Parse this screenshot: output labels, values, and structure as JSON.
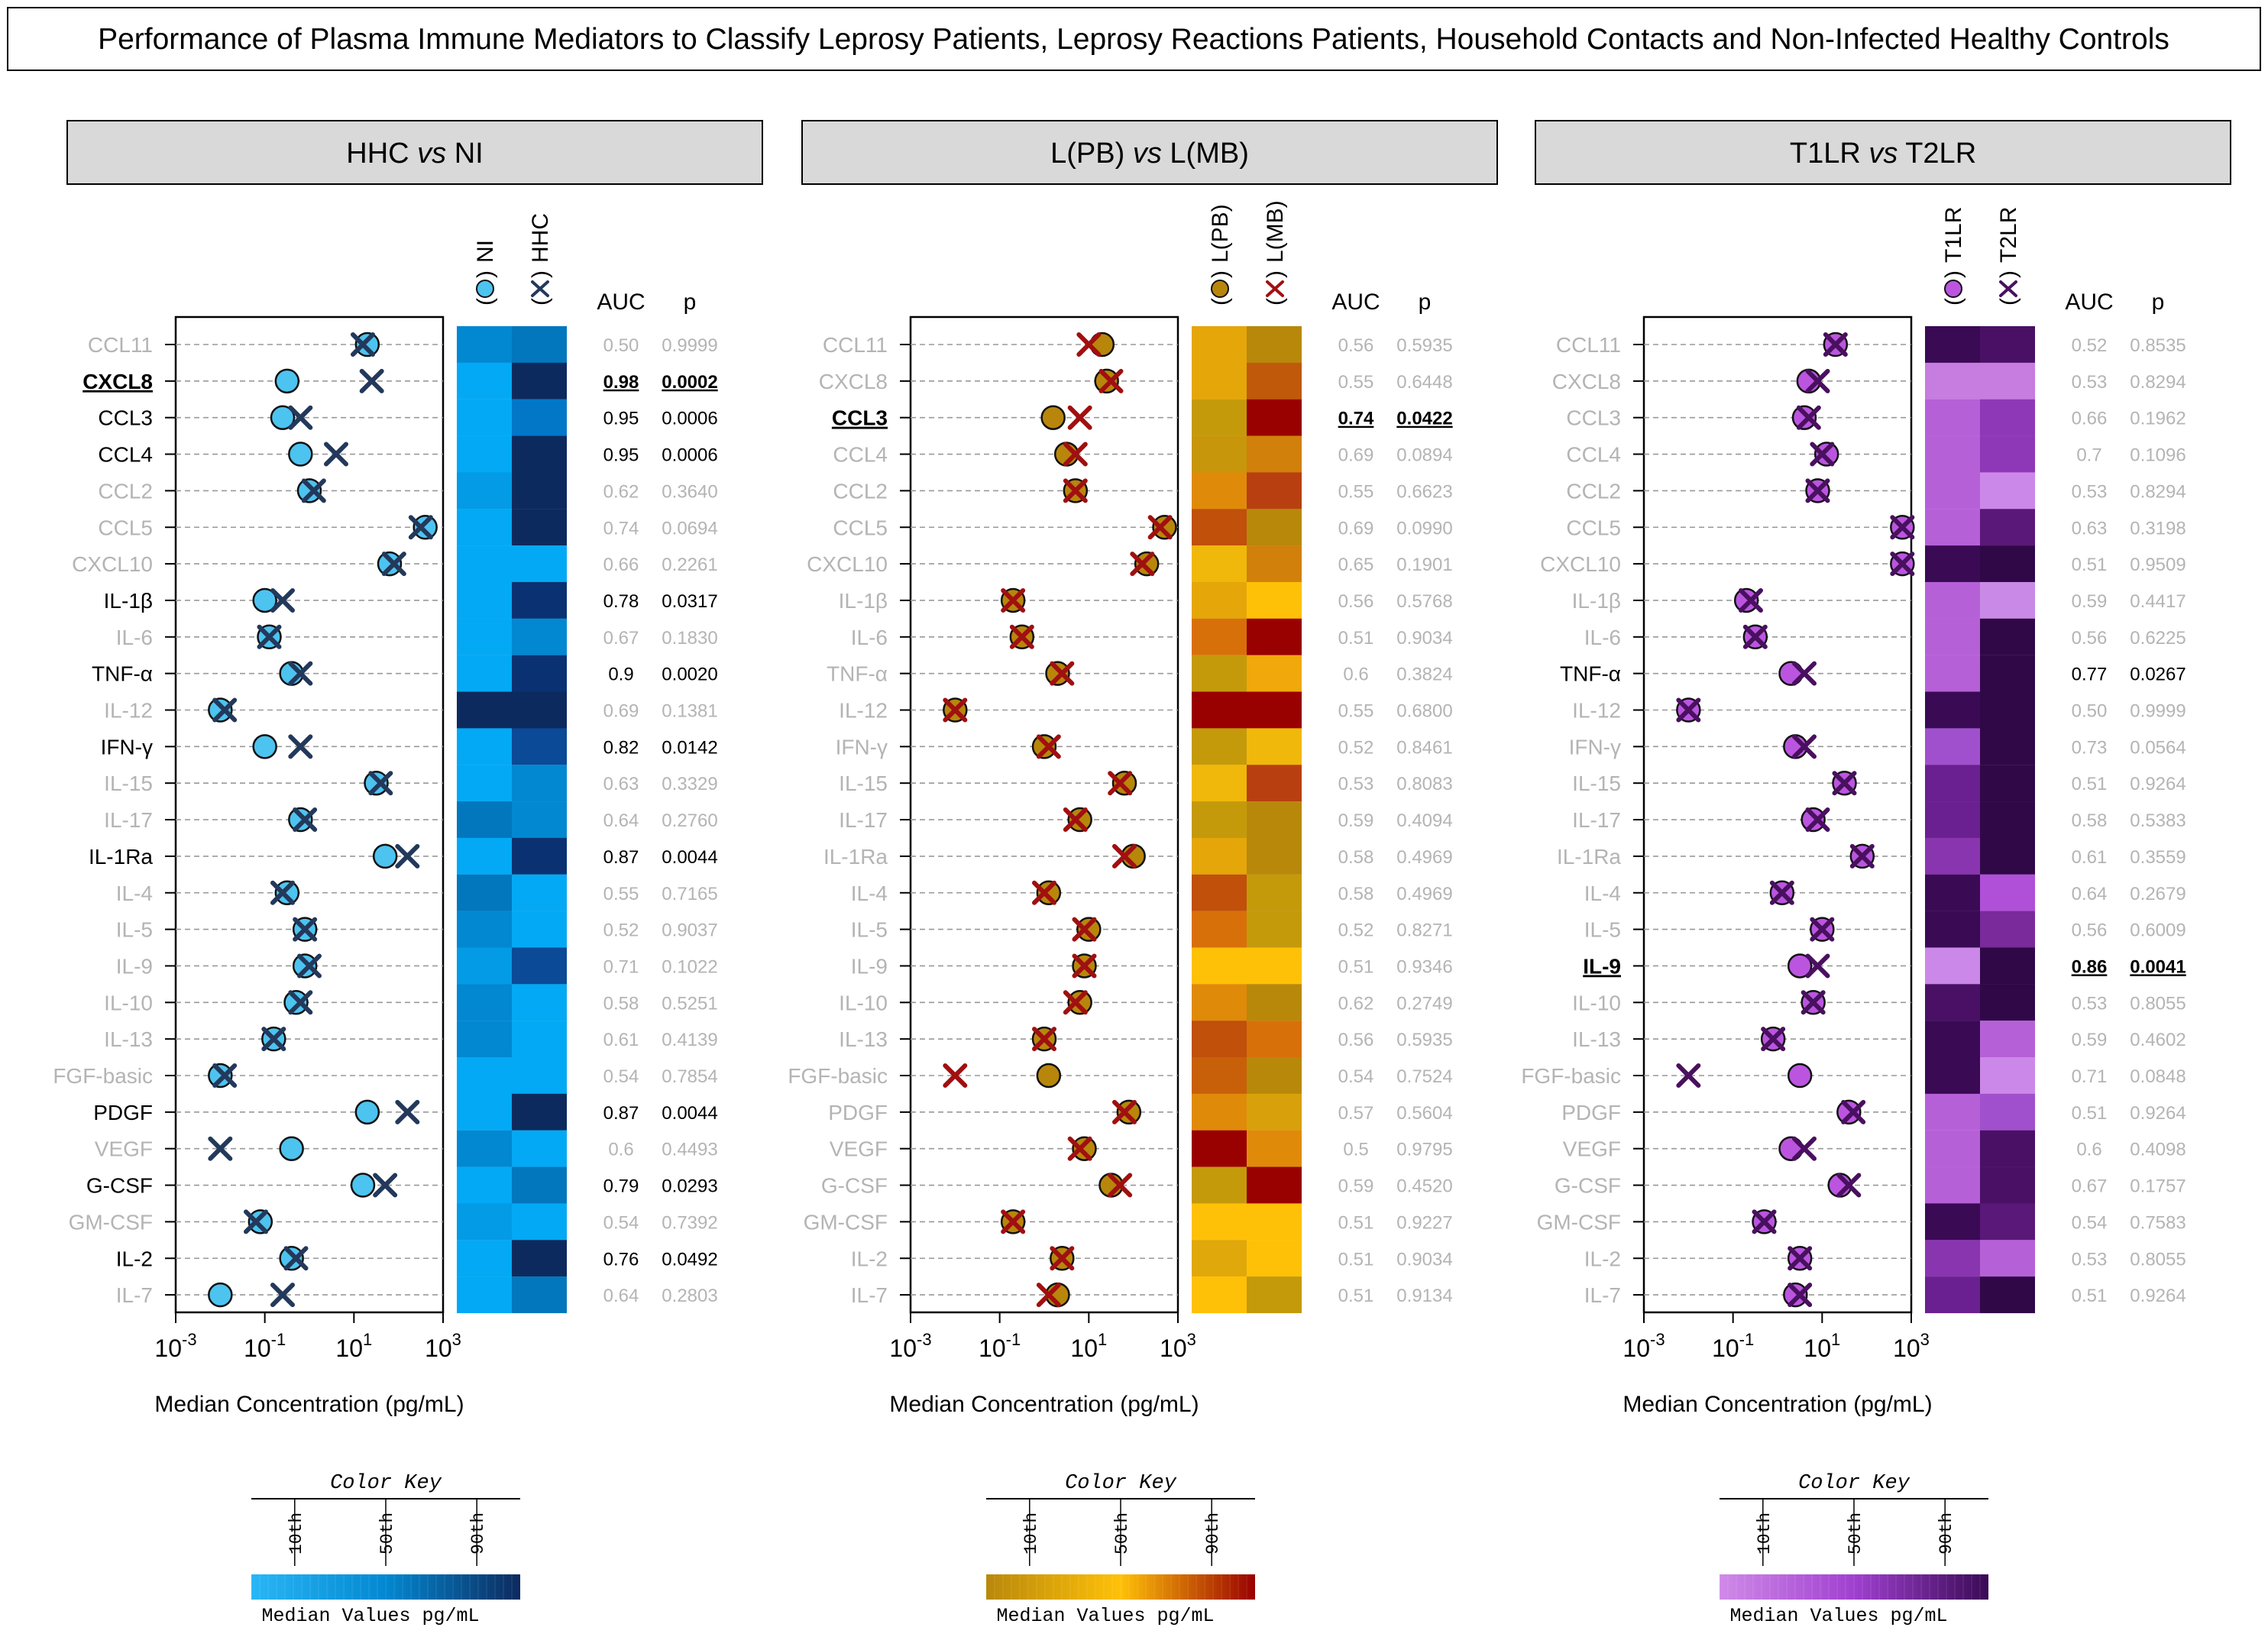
{
  "title": "Performance of Plasma Immune Mediators to Classify Leprosy Patients, Leprosy Reactions Patients, Household Contacts and Non-Infected Healthy Controls",
  "cytokines": [
    "CCL11",
    "CXCL8",
    "CCL3",
    "CCL4",
    "CCL2",
    "CCL5",
    "CXCL10",
    "IL-1β",
    "IL-6",
    "TNF-α",
    "IL-12",
    "IFN-γ",
    "IL-15",
    "IL-17",
    "IL-1Ra",
    "IL-4",
    "IL-5",
    "IL-9",
    "IL-10",
    "IL-13",
    "FGF-basic",
    "PDGF",
    "VEGF",
    "G-CSF",
    "GM-CSF",
    "IL-2",
    "IL-7"
  ],
  "axis": {
    "xlabel": "Median Concentration (pg/mL)",
    "tick_base": "10",
    "tick_exponents": [
      "-3",
      "-1",
      "1",
      "3"
    ],
    "xlim_log10": [
      -3,
      3
    ]
  },
  "table_headers": {
    "auc": "AUC",
    "p": "p"
  },
  "color_key": {
    "title": "Color Key",
    "percentiles": [
      "10th",
      "50th",
      "90th"
    ],
    "label": "Median Values pg/mL"
  },
  "chart_data": [
    {
      "type": "scatter",
      "comparison": {
        "a": "HHC",
        "vs": "vs",
        "b": "NI"
      },
      "series": [
        {
          "name": "NI",
          "marker": "circle",
          "color": "#4dc3f0",
          "log10_values": [
            1.3,
            -0.5,
            -0.6,
            -0.2,
            0.0,
            2.6,
            1.8,
            -1.0,
            -0.9,
            -0.4,
            -2.0,
            -1.0,
            1.5,
            -0.2,
            1.7,
            -0.5,
            -0.1,
            -0.1,
            -0.3,
            -0.8,
            -2.0,
            1.3,
            -0.4,
            1.2,
            -1.1,
            -0.4,
            -2.0
          ]
        },
        {
          "name": "HHC",
          "marker": "cross",
          "color": "#23395b",
          "log10_values": [
            1.2,
            1.4,
            -0.2,
            0.6,
            0.1,
            2.5,
            1.9,
            -0.6,
            -0.9,
            -0.2,
            -1.9,
            -0.2,
            1.6,
            -0.1,
            2.2,
            -0.6,
            -0.1,
            0.0,
            -0.2,
            -0.8,
            -1.9,
            2.2,
            -2.0,
            1.7,
            -1.2,
            -0.3,
            -0.6
          ]
        }
      ],
      "heatmap_colors": [
        [
          "#0288d1",
          "#0277bd"
        ],
        [
          "#03a9f4",
          "#0d2a5e"
        ],
        [
          "#03a9f4",
          "#0277c8"
        ],
        [
          "#03a9f4",
          "#0d2a5e"
        ],
        [
          "#039be5",
          "#0d2a5e"
        ],
        [
          "#03a9f4",
          "#0d2a5e"
        ],
        [
          "#03a9f4",
          "#03a9f4"
        ],
        [
          "#03a9f4",
          "#0a3272"
        ],
        [
          "#03a9f4",
          "#0288d1"
        ],
        [
          "#03a9f4",
          "#0a3272"
        ],
        [
          "#0d2a5e",
          "#0d2a5e"
        ],
        [
          "#03a9f4",
          "#0a4a96"
        ],
        [
          "#03a9f4",
          "#0288d1"
        ],
        [
          "#0277bd",
          "#0288d1"
        ],
        [
          "#03a9f4",
          "#0a3272"
        ],
        [
          "#0277bd",
          "#03a9f4"
        ],
        [
          "#0288d1",
          "#03a9f4"
        ],
        [
          "#039be5",
          "#0a4a96"
        ],
        [
          "#0288d1",
          "#03a9f4"
        ],
        [
          "#0288d1",
          "#03a9f4"
        ],
        [
          "#03a9f4",
          "#03a9f4"
        ],
        [
          "#03a9f4",
          "#0d2a5e"
        ],
        [
          "#0288d1",
          "#03a9f4"
        ],
        [
          "#03a9f4",
          "#0277bd"
        ],
        [
          "#039be5",
          "#03a9f4"
        ],
        [
          "#03a9f4",
          "#0d2a5e"
        ],
        [
          "#03a9f4",
          "#0277bd"
        ]
      ],
      "auc": [
        "0.50",
        "0.98",
        "0.95",
        "0.95",
        "0.62",
        "0.74",
        "0.66",
        "0.78",
        "0.67",
        "0.9",
        "0.69",
        "0.82",
        "0.63",
        "0.64",
        "0.87",
        "0.55",
        "0.52",
        "0.71",
        "0.58",
        "0.61",
        "0.54",
        "0.87",
        "0.6",
        "0.79",
        "0.54",
        "0.76",
        "0.64"
      ],
      "p": [
        "0.9999",
        "0.0002",
        "0.0006",
        "0.0006",
        "0.3640",
        "0.0694",
        "0.2261",
        "0.0317",
        "0.1830",
        "0.0020",
        "0.1381",
        "0.0142",
        "0.3329",
        "0.2760",
        "0.0044",
        "0.7165",
        "0.9037",
        "0.1022",
        "0.5251",
        "0.4139",
        "0.7854",
        "0.0044",
        "0.4493",
        "0.0293",
        "0.7392",
        "0.0492",
        "0.2803"
      ],
      "significant": [
        false,
        true,
        true,
        true,
        false,
        false,
        false,
        true,
        false,
        true,
        false,
        true,
        false,
        false,
        true,
        false,
        false,
        false,
        false,
        false,
        false,
        true,
        false,
        true,
        false,
        true,
        false
      ],
      "highlight_index": 1,
      "colorbar": [
        "#29b6f6",
        "#0288d1",
        "#0d2a5e"
      ]
    },
    {
      "type": "scatter",
      "comparison": {
        "a": "L(PB)",
        "vs": "vs",
        "b": "L(MB)"
      },
      "series": [
        {
          "name": "L(PB)",
          "marker": "circle",
          "color": "#b8860b",
          "log10_values": [
            1.3,
            1.4,
            0.2,
            0.5,
            0.7,
            2.7,
            2.3,
            -0.7,
            -0.5,
            0.3,
            -2.0,
            0.0,
            1.8,
            0.8,
            2.0,
            0.1,
            1.0,
            0.9,
            0.8,
            0.0,
            0.1,
            1.9,
            0.9,
            1.5,
            -0.7,
            0.4,
            0.3
          ]
        },
        {
          "name": "L(MB)",
          "marker": "cross",
          "color": "#a01010",
          "log10_values": [
            1.0,
            1.5,
            0.8,
            0.7,
            0.7,
            2.6,
            2.2,
            -0.7,
            -0.5,
            0.4,
            -2.0,
            0.1,
            1.7,
            0.7,
            1.8,
            0.0,
            0.9,
            0.9,
            0.7,
            0.0,
            -2.0,
            1.8,
            0.8,
            1.7,
            -0.7,
            0.4,
            0.1
          ]
        }
      ],
      "heatmap_colors": [
        [
          "#e5a60a",
          "#b8880b"
        ],
        [
          "#e5a60a",
          "#c0590a"
        ],
        [
          "#c49a0b",
          "#990000"
        ],
        [
          "#c8960b",
          "#d0800b"
        ],
        [
          "#e08a0a",
          "#b84010"
        ],
        [
          "#c0500a",
          "#b8880b"
        ],
        [
          "#f0b80a",
          "#d0800b"
        ],
        [
          "#e5a60a",
          "#ffc107"
        ],
        [
          "#d8700a",
          "#990000"
        ],
        [
          "#c49a0b",
          "#f0a80a"
        ],
        [
          "#990000",
          "#990000"
        ],
        [
          "#c49a0b",
          "#f0b80a"
        ],
        [
          "#f0b80a",
          "#b84010"
        ],
        [
          "#c49a0b",
          "#b8880b"
        ],
        [
          "#e5a60a",
          "#b8880b"
        ],
        [
          "#c0500a",
          "#c49a0b"
        ],
        [
          "#d8700a",
          "#c49a0b"
        ],
        [
          "#ffc107",
          "#ffc107"
        ],
        [
          "#e08a0a",
          "#b8880b"
        ],
        [
          "#c0500a",
          "#d8700a"
        ],
        [
          "#c8600a",
          "#b8880b"
        ],
        [
          "#e08a0a",
          "#d8a00a"
        ],
        [
          "#990000",
          "#e08a0a"
        ],
        [
          "#c49a0b",
          "#990000"
        ],
        [
          "#ffc107",
          "#ffc107"
        ],
        [
          "#e0a80a",
          "#ffc107"
        ],
        [
          "#ffc107",
          "#c49a0b"
        ]
      ],
      "auc": [
        "0.56",
        "0.55",
        "0.74",
        "0.69",
        "0.55",
        "0.69",
        "0.65",
        "0.56",
        "0.51",
        "0.6",
        "0.55",
        "0.52",
        "0.53",
        "0.59",
        "0.58",
        "0.58",
        "0.52",
        "0.51",
        "0.62",
        "0.56",
        "0.54",
        "0.57",
        "0.5",
        "0.59",
        "0.51",
        "0.51",
        "0.51"
      ],
      "p": [
        "0.5935",
        "0.6448",
        "0.0422",
        "0.0894",
        "0.6623",
        "0.0990",
        "0.1901",
        "0.5768",
        "0.9034",
        "0.3824",
        "0.6800",
        "0.8461",
        "0.8083",
        "0.4094",
        "0.4969",
        "0.4969",
        "0.8271",
        "0.9346",
        "0.2749",
        "0.5935",
        "0.7524",
        "0.5604",
        "0.9795",
        "0.4520",
        "0.9227",
        "0.9034",
        "0.9134"
      ],
      "significant": [
        false,
        false,
        true,
        false,
        false,
        false,
        false,
        false,
        false,
        false,
        false,
        false,
        false,
        false,
        false,
        false,
        false,
        false,
        false,
        false,
        false,
        false,
        false,
        false,
        false,
        false,
        false
      ],
      "highlight_index": 2,
      "colorbar": [
        "#b8880b",
        "#ffc107",
        "#990000"
      ]
    },
    {
      "type": "scatter",
      "comparison": {
        "a": "T1LR",
        "vs": "vs",
        "b": "T2LR"
      },
      "series": [
        {
          "name": "T1LR",
          "marker": "circle",
          "color": "#bb55e0",
          "log10_values": [
            1.3,
            0.7,
            0.6,
            1.1,
            0.9,
            2.8,
            2.8,
            -0.7,
            -0.5,
            0.3,
            -2.0,
            0.4,
            1.5,
            0.8,
            1.9,
            0.1,
            1.0,
            0.5,
            0.8,
            -0.1,
            0.5,
            1.6,
            0.3,
            1.4,
            -0.3,
            0.5,
            0.4
          ]
        },
        {
          "name": "T2LR",
          "marker": "cross",
          "color": "#4a1060",
          "log10_values": [
            1.3,
            0.9,
            0.7,
            1.0,
            0.9,
            2.8,
            2.8,
            -0.6,
            -0.5,
            0.6,
            -2.0,
            0.6,
            1.5,
            0.9,
            1.9,
            0.1,
            1.0,
            0.9,
            0.8,
            -0.1,
            -2.0,
            1.7,
            0.6,
            1.6,
            -0.3,
            0.5,
            0.5
          ]
        }
      ],
      "heatmap_colors": [
        [
          "#3a0a55",
          "#4a1066"
        ],
        [
          "#c77ce0",
          "#c77ce0"
        ],
        [
          "#b660d8",
          "#8e38b8"
        ],
        [
          "#b660d8",
          "#8e38b8"
        ],
        [
          "#b660d8",
          "#cc88e8"
        ],
        [
          "#b660d8",
          "#5a1878"
        ],
        [
          "#3a0a55",
          "#300848"
        ],
        [
          "#b660d8",
          "#c88ae6"
        ],
        [
          "#b660d8",
          "#300848"
        ],
        [
          "#b660d8",
          "#300848"
        ],
        [
          "#3a0a55",
          "#300848"
        ],
        [
          "#a050cc",
          "#300848"
        ],
        [
          "#6a2090",
          "#300848"
        ],
        [
          "#6a2090",
          "#300848"
        ],
        [
          "#8a35b0",
          "#300848"
        ],
        [
          "#3a0a55",
          "#b050d8"
        ],
        [
          "#3a0a55",
          "#7a2a9a"
        ],
        [
          "#cc88e8",
          "#300848"
        ],
        [
          "#4a1066",
          "#300848"
        ],
        [
          "#3a0a55",
          "#b660d8"
        ],
        [
          "#3a0a55",
          "#cc88e8"
        ],
        [
          "#b660d8",
          "#a050cc"
        ],
        [
          "#b660d8",
          "#4a1066"
        ],
        [
          "#b660d8",
          "#4a1066"
        ],
        [
          "#3a0a55",
          "#5a1878"
        ],
        [
          "#8a35b0",
          "#b660d8"
        ],
        [
          "#6a2090",
          "#300848"
        ]
      ],
      "auc": [
        "0.52",
        "0.53",
        "0.66",
        "0.7",
        "0.53",
        "0.63",
        "0.51",
        "0.59",
        "0.56",
        "0.77",
        "0.50",
        "0.73",
        "0.51",
        "0.58",
        "0.61",
        "0.64",
        "0.56",
        "0.86",
        "0.53",
        "0.59",
        "0.71",
        "0.51",
        "0.6",
        "0.67",
        "0.54",
        "0.53",
        "0.51"
      ],
      "p": [
        "0.8535",
        "0.8294",
        "0.1962",
        "0.1096",
        "0.8294",
        "0.3198",
        "0.9509",
        "0.4417",
        "0.6225",
        "0.0267",
        "0.9999",
        "0.0564",
        "0.9264",
        "0.5383",
        "0.3559",
        "0.2679",
        "0.6009",
        "0.0041",
        "0.8055",
        "0.4602",
        "0.0848",
        "0.9264",
        "0.4098",
        "0.1757",
        "0.7583",
        "0.8055",
        "0.9264"
      ],
      "significant": [
        false,
        false,
        false,
        false,
        false,
        false,
        false,
        false,
        false,
        true,
        false,
        false,
        false,
        false,
        false,
        false,
        false,
        true,
        false,
        false,
        false,
        false,
        false,
        false,
        false,
        false,
        false
      ],
      "highlight_index": 17,
      "colorbar": [
        "#d08ae8",
        "#a040d0",
        "#3a0a55"
      ]
    }
  ]
}
